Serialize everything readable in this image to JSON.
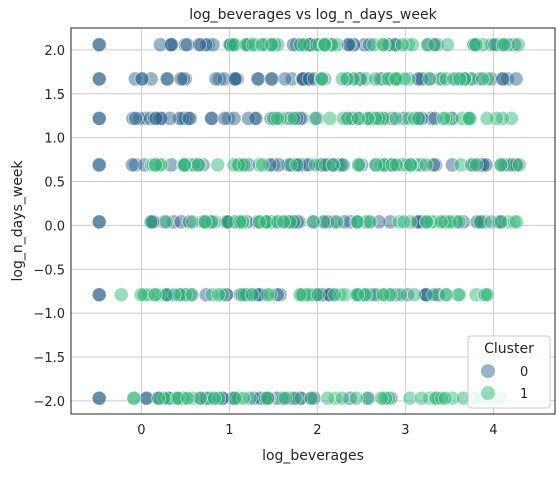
{
  "chart_data": {
    "type": "scatter",
    "title": "log_beverages vs log_n_days_week",
    "xlabel": "log_beverages",
    "ylabel": "log_n_days_week",
    "xlim": [
      -0.8,
      4.7
    ],
    "ylim": [
      -2.15,
      2.25
    ],
    "x_ticks": [
      0,
      1,
      2,
      3,
      4
    ],
    "y_ticks": [
      -2.0,
      -1.5,
      -1.0,
      -0.5,
      0.0,
      0.5,
      1.0,
      1.5,
      2.0
    ],
    "x_tick_labels": [
      "0",
      "1",
      "2",
      "3",
      "4"
    ],
    "y_tick_labels": [
      "−2.0",
      "−1.5",
      "−1.0",
      "−0.5",
      "0.0",
      "0.5",
      "1.0",
      "1.5",
      "2.0"
    ],
    "grid": true,
    "legend": {
      "title": "Cluster",
      "placement": "lower-right",
      "entries": [
        {
          "label": "0",
          "color": "#31688e"
        },
        {
          "label": "1",
          "color": "#35b779"
        }
      ]
    },
    "y_levels": [
      2.06,
      1.67,
      1.22,
      0.69,
      0.04,
      -0.79,
      -1.97
    ],
    "series": [
      {
        "name": "0",
        "color": "#31688e",
        "points": [
          {
            "y": 2.06,
            "x_min": 0.0,
            "x_max": 4.3,
            "extra_x": [
              -0.48
            ]
          },
          {
            "y": 1.67,
            "x_min": -0.1,
            "x_max": 4.3,
            "extra_x": [
              -0.48
            ]
          },
          {
            "y": 1.22,
            "x_min": -0.1,
            "x_max": 3.8,
            "extra_x": [
              -0.48
            ]
          },
          {
            "y": 0.69,
            "x_min": -0.2,
            "x_max": 4.3,
            "extra_x": [
              -0.48
            ]
          },
          {
            "y": 0.04,
            "x_min": 0.0,
            "x_max": 4.3,
            "extra_x": [
              -0.48
            ]
          },
          {
            "y": -0.79,
            "x_min": 0.0,
            "x_max": 3.5,
            "extra_x": [
              -0.48
            ]
          },
          {
            "y": -1.97,
            "x_min": 0.05,
            "x_max": 2.9,
            "extra_x": [
              -0.48
            ]
          }
        ]
      },
      {
        "name": "1",
        "color": "#35b779",
        "points": [
          {
            "y": 2.06,
            "x_min": 1.0,
            "x_max": 4.3,
            "extra_x": []
          },
          {
            "y": 1.67,
            "x_min": 1.8,
            "x_max": 4.2,
            "extra_x": []
          },
          {
            "y": 1.22,
            "x_min": 1.5,
            "x_max": 4.3,
            "extra_x": []
          },
          {
            "y": 0.69,
            "x_min": 0.1,
            "x_max": 4.3,
            "extra_x": []
          },
          {
            "y": 0.04,
            "x_min": 0.1,
            "x_max": 4.3,
            "extra_x": []
          },
          {
            "y": -0.79,
            "x_min": -0.25,
            "x_max": 4.0,
            "extra_x": []
          },
          {
            "y": -1.97,
            "x_min": -0.1,
            "x_max": 4.2,
            "extra_x": []
          }
        ]
      }
    ]
  }
}
